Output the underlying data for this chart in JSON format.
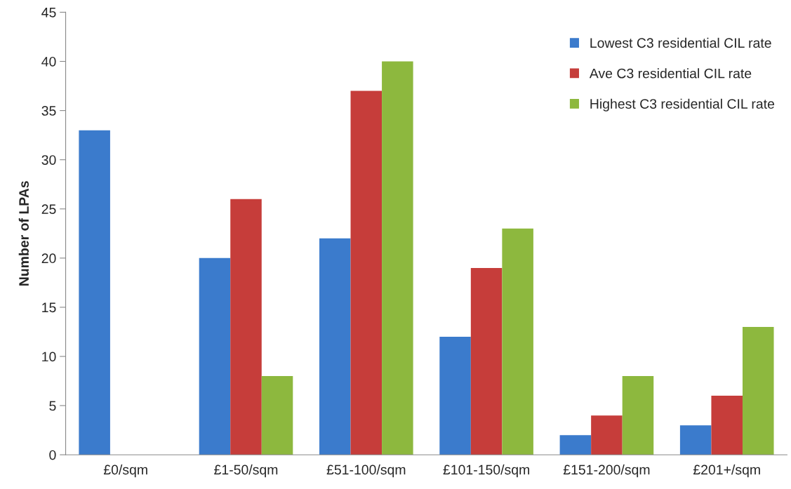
{
  "chart_data": {
    "type": "bar",
    "ylabel": "Number of LPAs",
    "categories": [
      "£0/sqm",
      "£1-50/sqm",
      "£51-100/sqm",
      "£101-150/sqm",
      "£151-200/sqm",
      "£201+/sqm"
    ],
    "series": [
      {
        "name": "Lowest C3 residential CIL rate",
        "color": "#3b7bcc",
        "values": [
          33,
          20,
          22,
          12,
          2,
          3
        ]
      },
      {
        "name": "Ave C3 residential CIL rate",
        "color": "#c63d3a",
        "values": [
          0,
          26,
          37,
          19,
          4,
          6
        ]
      },
      {
        "name": "Highest C3 residential CIL rate",
        "color": "#8db83e",
        "values": [
          0,
          8,
          40,
          23,
          8,
          13
        ]
      }
    ],
    "ylim": [
      0,
      45
    ],
    "yticks": [
      0,
      5,
      10,
      15,
      20,
      25,
      30,
      35,
      40,
      45
    ],
    "grid": false,
    "legend": "top right"
  }
}
